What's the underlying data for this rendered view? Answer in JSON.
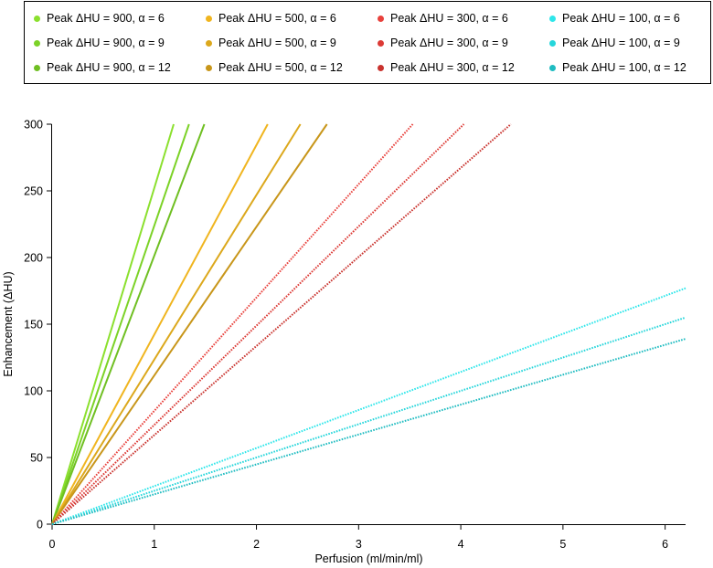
{
  "chart_data": {
    "type": "line",
    "xlabel": "Perfusion (ml/min/ml)",
    "ylabel": "Enhancement (ΔHU)",
    "xlim": [
      0,
      6.2
    ],
    "ylim": [
      0,
      300
    ],
    "x_ticks": [
      "0",
      "1",
      "2",
      "3",
      "4",
      "5",
      "6"
    ],
    "y_ticks": [
      "0",
      "50",
      "100",
      "150",
      "200",
      "250",
      "300"
    ],
    "grid": false,
    "legend_position": "top",
    "series": [
      {
        "name": "Peak ΔHU = 900, α = 6",
        "color": "#8be02e",
        "style": "solid",
        "x": [
          0,
          1.19
        ],
        "y": [
          0,
          300
        ]
      },
      {
        "name": "Peak ΔHU = 900, α = 9",
        "color": "#7cd227",
        "style": "solid",
        "x": [
          0,
          1.34
        ],
        "y": [
          0,
          300
        ]
      },
      {
        "name": "Peak ΔHU = 900, α = 12",
        "color": "#6fbf22",
        "style": "solid",
        "x": [
          0,
          1.49
        ],
        "y": [
          0,
          300
        ]
      },
      {
        "name": "Peak ΔHU = 500, α = 6",
        "color": "#f0b51f",
        "style": "solid",
        "x": [
          0,
          2.11
        ],
        "y": [
          0,
          300
        ]
      },
      {
        "name": "Peak ΔHU = 500, α = 9",
        "color": "#dca81c",
        "style": "solid",
        "x": [
          0,
          2.43
        ],
        "y": [
          0,
          300
        ]
      },
      {
        "name": "Peak ΔHU = 500, α = 12",
        "color": "#c8961a",
        "style": "solid",
        "x": [
          0,
          2.69
        ],
        "y": [
          0,
          300
        ]
      },
      {
        "name": "Peak ΔHU = 300, α = 6",
        "color": "#e8413c",
        "style": "dotted",
        "x": [
          0,
          3.53
        ],
        "y": [
          0,
          300
        ]
      },
      {
        "name": "Peak ΔHU = 300, α = 9",
        "color": "#dc3a35",
        "style": "dotted",
        "x": [
          0,
          4.03
        ],
        "y": [
          0,
          300
        ]
      },
      {
        "name": "Peak ΔHU = 300, α = 12",
        "color": "#c9332e",
        "style": "dotted",
        "x": [
          0,
          4.49
        ],
        "y": [
          0,
          300
        ]
      },
      {
        "name": "Peak ΔHU = 100, α = 6",
        "color": "#2ee6ea",
        "style": "dotted",
        "x": [
          0,
          6.2
        ],
        "y": [
          0,
          177
        ]
      },
      {
        "name": "Peak ΔHU = 100, α = 9",
        "color": "#26d6db",
        "style": "dotted",
        "x": [
          0,
          6.2
        ],
        "y": [
          0,
          155
        ]
      },
      {
        "name": "Peak ΔHU = 100, α = 12",
        "color": "#1fbcc1",
        "style": "dotted",
        "x": [
          0,
          6.2
        ],
        "y": [
          0,
          139
        ]
      }
    ]
  }
}
